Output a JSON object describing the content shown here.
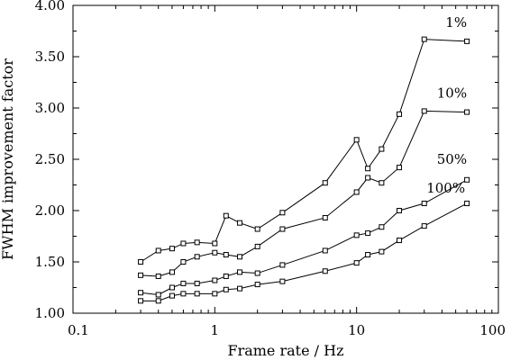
{
  "chart_data": {
    "type": "line",
    "title": "",
    "xlabel": "Frame rate / Hz",
    "ylabel": "FWHM improvement factor",
    "xscale": "log",
    "xlim": [
      0.1,
      100
    ],
    "ylim": [
      1.0,
      4.0
    ],
    "x_ticks": [
      {
        "value": 0.1,
        "label": "0.1"
      },
      {
        "value": 1,
        "label": "1"
      },
      {
        "value": 10,
        "label": "10"
      },
      {
        "value": 100,
        "label": "100"
      }
    ],
    "y_ticks": [
      {
        "value": 1.0,
        "label": "1.00"
      },
      {
        "value": 1.5,
        "label": "1.50"
      },
      {
        "value": 2.0,
        "label": "2.00"
      },
      {
        "value": 2.5,
        "label": "2.50"
      },
      {
        "value": 3.0,
        "label": "3.00"
      },
      {
        "value": 3.5,
        "label": "3.50"
      },
      {
        "value": 4.0,
        "label": "4.00"
      }
    ],
    "grid": false,
    "marker": "open-square",
    "colors": {
      "line": "#000000",
      "axis": "#000000",
      "background": "#ffffff"
    },
    "x": [
      0.3,
      0.4,
      0.5,
      0.6,
      0.75,
      1.0,
      1.2,
      1.5,
      2,
      3,
      6,
      10,
      12,
      15,
      20,
      30,
      60
    ],
    "series": [
      {
        "name": "1%",
        "values": [
          1.5,
          1.61,
          1.63,
          1.68,
          1.69,
          1.68,
          1.95,
          1.88,
          1.82,
          1.98,
          2.27,
          2.69,
          2.41,
          2.6,
          2.94,
          3.67,
          3.65
        ]
      },
      {
        "name": "10%",
        "values": [
          1.37,
          1.36,
          1.4,
          1.5,
          1.55,
          1.59,
          1.57,
          1.55,
          1.65,
          1.82,
          1.93,
          2.18,
          2.32,
          2.27,
          2.42,
          2.97,
          2.96
        ]
      },
      {
        "name": "50%",
        "values": [
          1.2,
          1.18,
          1.25,
          1.29,
          1.29,
          1.32,
          1.36,
          1.4,
          1.39,
          1.47,
          1.61,
          1.76,
          1.78,
          1.84,
          2.0,
          2.07,
          2.3
        ]
      },
      {
        "name": "100%",
        "values": [
          1.12,
          1.12,
          1.17,
          1.19,
          1.19,
          1.19,
          1.23,
          1.24,
          1.28,
          1.31,
          1.41,
          1.49,
          1.57,
          1.6,
          1.71,
          1.85,
          2.07
        ]
      }
    ]
  }
}
